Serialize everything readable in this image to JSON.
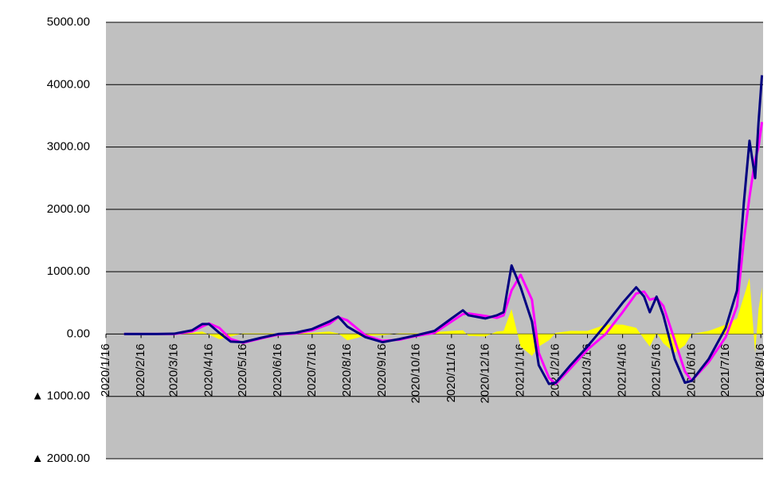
{
  "chart_data": {
    "type": "line",
    "x": [
      "2020/2/1",
      "2020/3/1",
      "2020/3/16",
      "2020/4/1",
      "2020/4/10",
      "2020/4/16",
      "2020/4/25",
      "2020/5/5",
      "2020/5/16",
      "2020/6/1",
      "2020/6/16",
      "2020/7/1",
      "2020/7/16",
      "2020/7/31",
      "2020/8/8",
      "2020/8/16",
      "2020/9/1",
      "2020/9/16",
      "2020/10/1",
      "2020/10/16",
      "2020/11/1",
      "2020/11/16",
      "2020/11/26",
      "2020/12/1",
      "2020/12/16",
      "2020/12/26",
      "2021/1/1",
      "2021/1/8",
      "2021/1/16",
      "2021/1/26",
      "2021/2/1",
      "2021/2/10",
      "2021/2/16",
      "2021/3/1",
      "2021/3/16",
      "2021/4/1",
      "2021/4/16",
      "2021/4/28",
      "2021/5/5",
      "2021/5/10",
      "2021/5/16",
      "2021/5/22",
      "2021/6/1",
      "2021/6/10",
      "2021/6/16",
      "2021/7/1",
      "2021/7/16",
      "2021/7/26",
      "2021/8/1",
      "2021/8/6",
      "2021/8/11",
      "2021/8/14",
      "2021/8/17"
    ],
    "series": [
      {
        "color": "#ffff00",
        "style": "area",
        "values": [
          0,
          0,
          5,
          20,
          40,
          -10,
          -80,
          -40,
          10,
          10,
          10,
          10,
          20,
          40,
          10,
          -100,
          -30,
          -20,
          10,
          10,
          30,
          50,
          60,
          -30,
          -40,
          40,
          50,
          400,
          -200,
          -350,
          -200,
          -100,
          20,
          50,
          50,
          150,
          150,
          100,
          -80,
          -200,
          20,
          -150,
          -300,
          -180,
          0,
          50,
          150,
          250,
          600,
          900,
          -300,
          400,
          750
        ]
      },
      {
        "color": "#ff00ff",
        "style": "line",
        "values": [
          0,
          0,
          0,
          40,
          120,
          170,
          100,
          -80,
          -140,
          -70,
          -10,
          10,
          60,
          160,
          270,
          220,
          -20,
          -110,
          -90,
          -30,
          20,
          200,
          320,
          330,
          290,
          260,
          300,
          700,
          950,
          550,
          -300,
          -700,
          -800,
          -550,
          -250,
          0,
          350,
          650,
          680,
          550,
          580,
          450,
          -100,
          -600,
          -750,
          -450,
          -50,
          450,
          1500,
          2200,
          2800,
          3000,
          3400
        ]
      },
      {
        "color": "#000080",
        "style": "line",
        "values": [
          0,
          0,
          5,
          60,
          160,
          160,
          20,
          -120,
          -130,
          -60,
          0,
          20,
          80,
          200,
          280,
          120,
          -50,
          -130,
          -80,
          -20,
          50,
          250,
          380,
          300,
          250,
          300,
          350,
          1100,
          750,
          200,
          -500,
          -800,
          -780,
          -500,
          -200,
          150,
          500,
          750,
          600,
          350,
          600,
          300,
          -400,
          -780,
          -750,
          -400,
          100,
          700,
          2100,
          3100,
          2500,
          3400,
          4150
        ]
      }
    ],
    "xlim": [
      "2020/1/16",
      "2021/8/18"
    ],
    "xticks": [
      "2020/1/16",
      "2020/2/16",
      "2020/3/16",
      "2020/4/16",
      "2020/5/16",
      "2020/6/16",
      "2020/7/16",
      "2020/8/16",
      "2020/9/16",
      "2020/10/16",
      "2020/11/16",
      "2020/12/16",
      "2021/1/16",
      "2021/2/16",
      "2021/3/16",
      "2021/4/16",
      "2021/5/16",
      "2021/6/16",
      "2021/7/16",
      "2021/8/16"
    ],
    "ylim": [
      -2000,
      5000
    ],
    "yticks": [
      {
        "value": -2000,
        "label": "▲ 2000.00"
      },
      {
        "value": -1000,
        "label": "▲ 1000.00"
      },
      {
        "value": 0,
        "label": "0.00"
      },
      {
        "value": 1000,
        "label": "1000.00"
      },
      {
        "value": 2000,
        "label": "2000.00"
      },
      {
        "value": 3000,
        "label": "3000.00"
      },
      {
        "value": 4000,
        "label": "4000.00"
      },
      {
        "value": 5000,
        "label": "5000.00"
      }
    ],
    "grid": true
  }
}
